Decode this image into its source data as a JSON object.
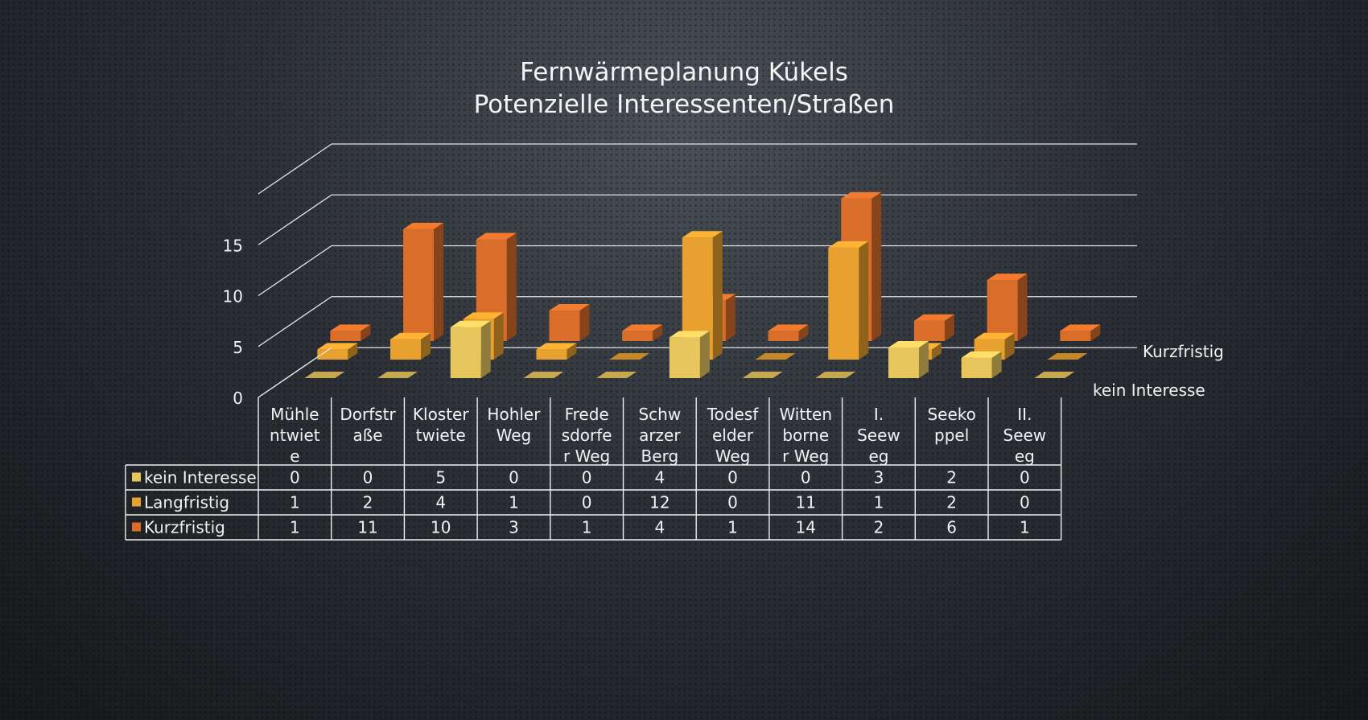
{
  "chart_data": {
    "type": "bar",
    "subtype": "3d-column",
    "title": [
      "Fernwärmeplanung Kükels",
      "Potenzielle Interessenten/Straßen"
    ],
    "categories": [
      [
        "Mühle",
        "ntwiet",
        "e"
      ],
      [
        "Dorfstr",
        "aße"
      ],
      [
        "Kloster",
        "twiete"
      ],
      [
        "Hohler",
        "Weg"
      ],
      [
        "Frede",
        "sdorfe",
        "r Weg"
      ],
      [
        "Schw",
        "arzer",
        "Berg"
      ],
      [
        "Todesf",
        "elder",
        "Weg"
      ],
      [
        "Witten",
        "borne",
        "r Weg"
      ],
      [
        "I.",
        "Seew",
        "eg"
      ],
      [
        "Seeko",
        "ppel"
      ],
      [
        "II.",
        "Seew",
        "eg"
      ]
    ],
    "series": [
      {
        "name": "kein Interesse",
        "color": "#e8c65e",
        "values": [
          0,
          0,
          5,
          0,
          0,
          4,
          0,
          0,
          3,
          2,
          0
        ]
      },
      {
        "name": "Langfristig",
        "color": "#e8a02e",
        "values": [
          1,
          2,
          4,
          1,
          0,
          12,
          0,
          11,
          1,
          2,
          0
        ]
      },
      {
        "name": "Kurzfristig",
        "color": "#d96e2a",
        "values": [
          1,
          11,
          10,
          3,
          1,
          4,
          1,
          14,
          2,
          6,
          1
        ]
      }
    ],
    "depth_labels": [
      "kein Interesse",
      "Kurzfristig"
    ],
    "yticks": [
      0,
      5,
      10,
      15
    ],
    "ylim": [
      0,
      20
    ],
    "grid": true,
    "legend": "data-table"
  }
}
